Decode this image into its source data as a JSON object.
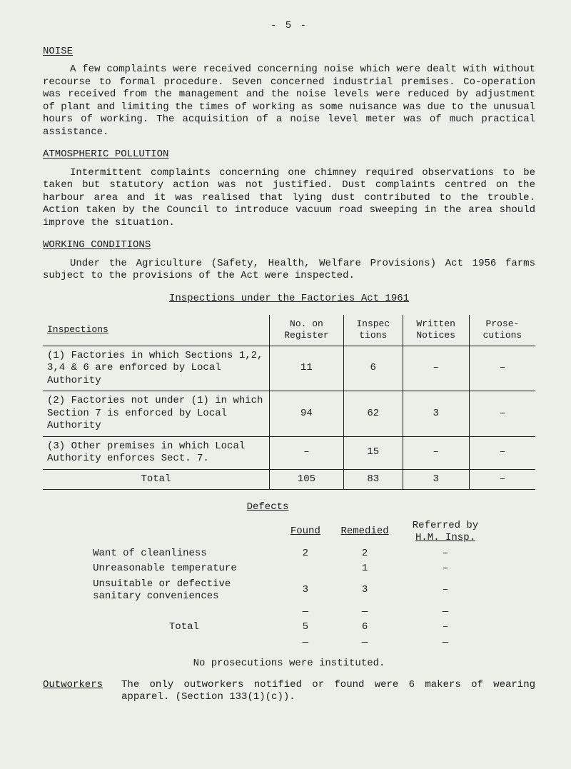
{
  "page_number": "- 5 -",
  "sections": {
    "noise": {
      "heading": "NOISE",
      "para": "A few complaints were received concerning noise which were dealt with without recourse to formal procedure.  Seven concerned industrial premises. Co-operation was received from the management and the noise levels were reduced by adjustment of plant and limiting the times of working as some nuisance was due to the unusual hours of working.  The acquisition of a noise level meter was of much practical assistance."
    },
    "atmos": {
      "heading": "ATMOSPHERIC POLLUTION",
      "para": "Intermittent complaints concerning one chimney required observations to be taken but statutory action was not justified.  Dust complaints centred on the harbour area and it was realised that lying dust contributed to the trouble.  Action taken by the Council to introduce vacuum road sweeping in the area should improve the situation."
    },
    "working": {
      "heading": "WORKING CONDITIONS",
      "intro": "Under the Agriculture (Safety, Health, Welfare Provisions) Act 1956 farms subject to the provisions of the Act were inspected.",
      "table_title": "Inspections under the Factories Act 1961"
    }
  },
  "inspections_table": {
    "headers": {
      "c0": "Inspections",
      "c1a": "No. on",
      "c1b": "Register",
      "c2a": "Inspec",
      "c2b": "tions",
      "c3a": "Written",
      "c3b": "Notices",
      "c4a": "Prose-",
      "c4b": "cutions"
    },
    "rows": [
      {
        "label": "(1) Factories in which Sections 1,2, 3,4 & 6 are enforced by Local Authority",
        "c1": "11",
        "c2": "6",
        "c3": "–",
        "c4": "–"
      },
      {
        "label": "(2) Factories not under (1) in which Section 7 is enforced by Local Authority",
        "c1": "94",
        "c2": "62",
        "c3": "3",
        "c4": "–"
      },
      {
        "label": "(3) Other premises in which Local Authority enforces Sect. 7.",
        "c1": "–",
        "c2": "15",
        "c3": "–",
        "c4": "–"
      }
    ],
    "total": {
      "label": "Total",
      "c1": "105",
      "c2": "83",
      "c3": "3",
      "c4": "–"
    }
  },
  "defects": {
    "title": "Defects",
    "headers": {
      "found": "Found",
      "rem": "Remedied",
      "ref1": "Referred by",
      "ref2": "H.M. Insp."
    },
    "rows": [
      {
        "label": "Want of cleanliness",
        "found": "2",
        "rem": "2",
        "ref": "–"
      },
      {
        "label": "Unreasonable temperature",
        "found": "",
        "rem": "1",
        "ref": "–"
      },
      {
        "label": "Unsuitable or defective sanitary conveniences",
        "found": "3",
        "rem": "3",
        "ref": "–"
      }
    ],
    "dash": {
      "label": "",
      "found": "—",
      "rem": "—",
      "ref": "—"
    },
    "total": {
      "label": "Total",
      "found": "5",
      "rem": "6",
      "ref": "–"
    },
    "dash2": {
      "label": "",
      "found": "—",
      "rem": "—",
      "ref": "—"
    }
  },
  "no_prosecutions": "No prosecutions were instituted.",
  "outworkers": {
    "label": "Outworkers",
    "text": "The only outworkers notified or found were 6 makers of wearing apparel.  (Section 133(1)(c))."
  }
}
